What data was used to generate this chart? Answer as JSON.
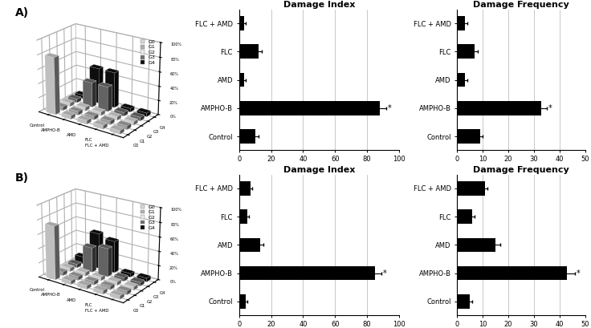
{
  "panel_A_label": "A)",
  "panel_B_label": "B)",
  "bar_categories": [
    "FLC + AMD",
    "FLC",
    "AMD",
    "AMPHO-B",
    "Control"
  ],
  "A_damage_index": [
    3,
    12,
    3,
    88,
    10
  ],
  "A_damage_freq": [
    3,
    7,
    3,
    33,
    9
  ],
  "B_damage_index": [
    7,
    5,
    13,
    85,
    4
  ],
  "B_damage_freq": [
    11,
    6,
    15,
    43,
    5
  ],
  "A_di_xerr": [
    1,
    2,
    1,
    4,
    2
  ],
  "A_df_xerr": [
    1,
    1,
    1,
    2,
    1
  ],
  "B_di_xerr": [
    1,
    1,
    2,
    4,
    1
  ],
  "B_df_xerr": [
    1,
    1,
    2,
    3,
    1
  ],
  "di_xlim_A": [
    0,
    100
  ],
  "df_xlim_A": [
    0,
    50
  ],
  "di_xlim_B": [
    0,
    100
  ],
  "df_xlim_B": [
    0,
    50
  ],
  "di_xticks_A": [
    0,
    20,
    40,
    60,
    80,
    100
  ],
  "df_xticks_A": [
    0,
    10,
    20,
    30,
    40,
    50
  ],
  "di_xticks_B": [
    0,
    20,
    40,
    60,
    80,
    100
  ],
  "df_xticks_B": [
    0,
    10,
    20,
    30,
    40,
    50
  ],
  "bar_color": "#000000",
  "title_damage_index": "Damage Index",
  "title_damage_freq": "Damage Frequency",
  "3d_x_labels": [
    "Control",
    "AMPHO-B",
    "AMD",
    "FLC",
    "FLC + AMD"
  ],
  "3d_y_labels": [
    "G0",
    "G1",
    "G2",
    "G3",
    "G4"
  ],
  "3d_colors": [
    "#d8d8d8",
    "#b0b0b0",
    "#e8e8e8",
    "#707070",
    "#101010"
  ],
  "A_3d_data": [
    [
      80,
      5,
      5,
      5,
      5
    ],
    [
      5,
      5,
      5,
      5,
      5
    ],
    [
      5,
      5,
      5,
      5,
      5
    ],
    [
      5,
      35,
      35,
      5,
      5
    ],
    [
      5,
      50,
      50,
      5,
      5
    ]
  ],
  "B_3d_data": [
    [
      75,
      5,
      5,
      5,
      5
    ],
    [
      5,
      5,
      5,
      5,
      5
    ],
    [
      5,
      5,
      5,
      5,
      5
    ],
    [
      5,
      35,
      40,
      5,
      5
    ],
    [
      10,
      50,
      45,
      5,
      5
    ]
  ],
  "legend_labels": [
    "G0",
    "G1",
    "G2",
    "G3",
    "G4"
  ],
  "legend_colors": [
    "#d8d8d8",
    "#b0b0b0",
    "#e8e8e8",
    "#707070",
    "#101010"
  ]
}
